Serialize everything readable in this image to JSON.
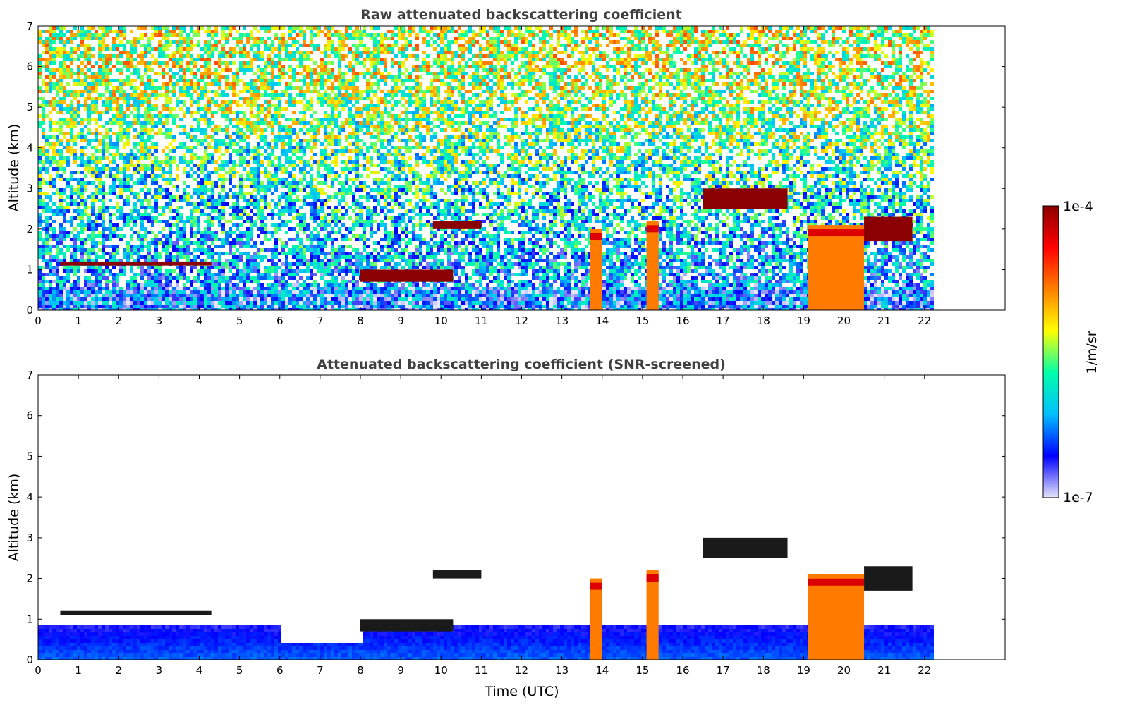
{
  "chart_data": [
    {
      "type": "heatmap",
      "title": "Raw attenuated backscattering coefficient",
      "xlabel": "",
      "ylabel": "Altitude (km)",
      "xlim": [
        0,
        24
      ],
      "ylim": [
        0,
        7
      ],
      "xticks": [
        "0",
        "1",
        "2",
        "3",
        "4",
        "5",
        "6",
        "7",
        "8",
        "9",
        "10",
        "11",
        "12",
        "13",
        "14",
        "15",
        "16",
        "17",
        "18",
        "19",
        "20",
        "21",
        "22"
      ],
      "yticks": [
        "0",
        "1",
        "2",
        "3",
        "4",
        "5",
        "6",
        "7"
      ],
      "data_end_time": 22.2,
      "features": [
        {
          "kind": "cloud_layer",
          "x": [
            0.55,
            4.3
          ],
          "y": [
            1.1,
            1.2
          ]
        },
        {
          "kind": "cloud_layer",
          "x": [
            8.0,
            10.3
          ],
          "y": [
            0.7,
            1.0
          ]
        },
        {
          "kind": "cloud_layer",
          "x": [
            9.8,
            11.0
          ],
          "y": [
            2.0,
            2.2
          ]
        },
        {
          "kind": "precip_column",
          "x": [
            13.7,
            14.0
          ],
          "y": [
            0,
            2.0
          ]
        },
        {
          "kind": "precip_column",
          "x": [
            15.1,
            15.4
          ],
          "y": [
            0,
            2.2
          ]
        },
        {
          "kind": "cloud_layer",
          "x": [
            16.5,
            18.6
          ],
          "y": [
            2.5,
            3.0
          ]
        },
        {
          "kind": "precip_column",
          "x": [
            19.1,
            20.5
          ],
          "y": [
            0,
            2.1
          ]
        },
        {
          "kind": "cloud_layer",
          "x": [
            20.5,
            21.7
          ],
          "y": [
            1.7,
            2.3
          ]
        }
      ]
    },
    {
      "type": "heatmap",
      "title": "Attenuated backscattering coefficient (SNR-screened)",
      "xlabel": "Time (UTC)",
      "ylabel": "Altitude (km)",
      "xlim": [
        0,
        24
      ],
      "ylim": [
        0,
        7
      ],
      "xticks": [
        "0",
        "1",
        "2",
        "3",
        "4",
        "5",
        "6",
        "7",
        "8",
        "9",
        "10",
        "11",
        "12",
        "13",
        "14",
        "15",
        "16",
        "17",
        "18",
        "19",
        "20",
        "21",
        "22"
      ],
      "yticks": [
        "0",
        "1",
        "2",
        "3",
        "4",
        "5",
        "6",
        "7"
      ],
      "data_end_time": 22.2
    }
  ],
  "colorbar": {
    "label": "1/m/sr",
    "max_label": "1e-4",
    "min_label": "1e-7",
    "colors": [
      "#e6e6fa",
      "#0000ff",
      "#00bfff",
      "#00ffaa",
      "#ffff00",
      "#ff8000",
      "#ff0000",
      "#8b0000"
    ]
  }
}
